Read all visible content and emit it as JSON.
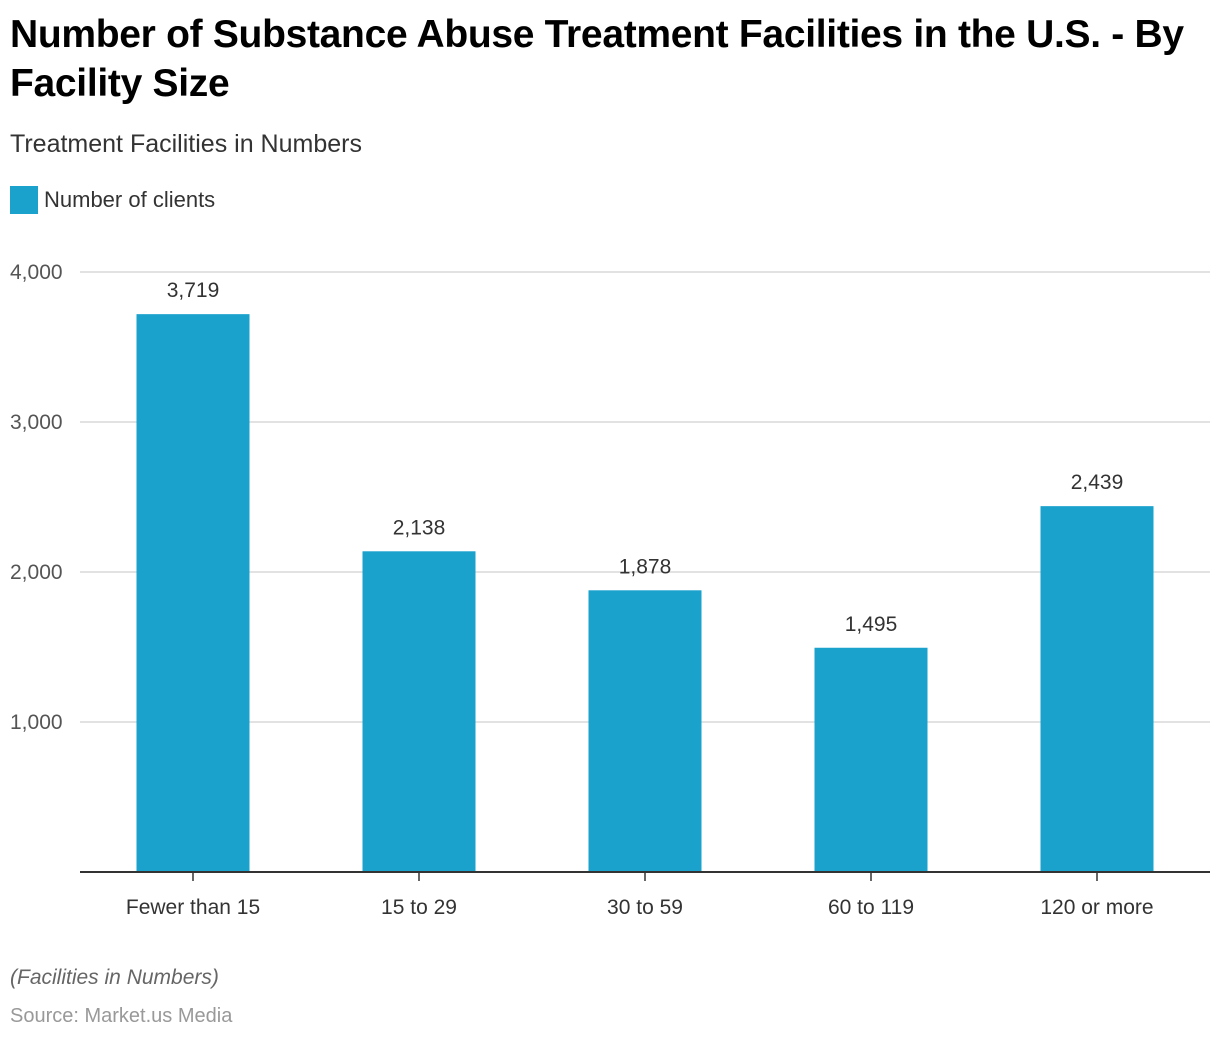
{
  "title": "Number of Substance Abuse Treatment Facilities in the U.S. - By Facility Size",
  "subtitle": "Treatment Facilities in Numbers",
  "legend": {
    "label": "Number of clients",
    "color": "#1AA1CC"
  },
  "footer": {
    "note": "(Facilities in Numbers)",
    "source": "Source: Market.us Media"
  },
  "chart_data": {
    "type": "bar",
    "title": "Number of Substance Abuse Treatment Facilities in the U.S. - By Facility Size",
    "subtitle": "Treatment Facilities in Numbers",
    "xlabel": "",
    "ylabel": "",
    "categories": [
      "Fewer than 15",
      "15 to 29",
      "30 to 59",
      "60 to 119",
      "120 or more"
    ],
    "series": [
      {
        "name": "Number of clients",
        "color": "#1AA1CC",
        "values": [
          3719,
          2138,
          1878,
          1495,
          2439
        ]
      }
    ],
    "data_labels": [
      "3,719",
      "2,138",
      "1,878",
      "1,495",
      "2,439"
    ],
    "ylim": [
      0,
      4000
    ],
    "yticks": [
      1000,
      2000,
      3000,
      4000
    ],
    "ytick_labels": [
      "1,000",
      "2,000",
      "3,000",
      "4,000"
    ],
    "grid": true,
    "legend_position": "top-left"
  }
}
